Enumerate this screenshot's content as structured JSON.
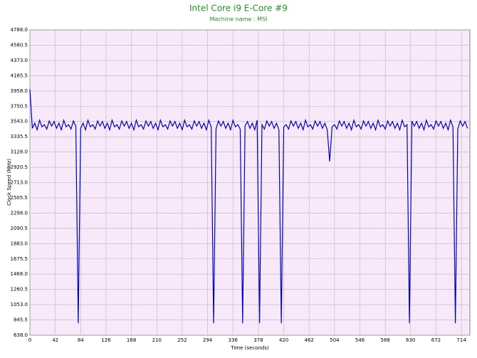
{
  "chart_data": {
    "type": "line",
    "title": "Intel Core i9 E-Core #9",
    "subtitle": "Machine name : MSI",
    "x_label": "Time (seconds)",
    "y_label": "Clock Speed (MHz)",
    "grid": true,
    "xlim": [
      0,
      728
    ],
    "xticks": [
      0,
      42,
      84,
      126,
      168,
      210,
      252,
      294,
      336,
      378,
      420,
      462,
      504,
      546,
      588,
      630,
      672,
      714
    ],
    "ylim": [
      638,
      4788
    ],
    "yticks": [
      {
        "value": 638,
        "label": "638.0"
      },
      {
        "value": 845.5,
        "label": "845.5"
      },
      {
        "value": 1053,
        "label": "1053.0"
      },
      {
        "value": 1260.5,
        "label": "1260.5"
      },
      {
        "value": 1468,
        "label": "1468.0"
      },
      {
        "value": 1675.5,
        "label": "1675.5"
      },
      {
        "value": 1883,
        "label": "1883.0"
      },
      {
        "value": 2090.5,
        "label": "2090.5"
      },
      {
        "value": 2298,
        "label": "2298.0"
      },
      {
        "value": 2505.5,
        "label": "2505.5"
      },
      {
        "value": 2713,
        "label": "2713.0"
      },
      {
        "value": 2920.5,
        "label": "2920.5"
      },
      {
        "value": 3128,
        "label": "3128.0"
      },
      {
        "value": 3335.5,
        "label": "3335.5"
      },
      {
        "value": 3543,
        "label": "3543.0"
      },
      {
        "value": 3750.5,
        "label": "3750.5"
      },
      {
        "value": 3958,
        "label": "3958.0"
      },
      {
        "value": 4165.5,
        "label": "4165.5"
      },
      {
        "value": 4373,
        "label": "4373.0"
      },
      {
        "value": 4580.5,
        "label": "4580.5"
      },
      {
        "value": 4788,
        "label": "4788.0"
      }
    ],
    "x": [
      0,
      4,
      8,
      12,
      16,
      20,
      24,
      28,
      32,
      36,
      40,
      44,
      48,
      52,
      56,
      60,
      64,
      68,
      72,
      76,
      80,
      84,
      88,
      92,
      96,
      100,
      104,
      108,
      112,
      116,
      120,
      124,
      128,
      132,
      136,
      140,
      144,
      148,
      152,
      156,
      160,
      164,
      168,
      172,
      176,
      180,
      184,
      188,
      192,
      196,
      200,
      204,
      208,
      212,
      216,
      220,
      224,
      228,
      232,
      236,
      240,
      244,
      248,
      252,
      256,
      260,
      264,
      268,
      272,
      276,
      280,
      284,
      288,
      292,
      296,
      300,
      304,
      308,
      312,
      316,
      320,
      324,
      328,
      332,
      336,
      340,
      344,
      348,
      352,
      356,
      360,
      364,
      368,
      372,
      376,
      380,
      384,
      388,
      392,
      396,
      400,
      404,
      408,
      412,
      416,
      420,
      424,
      428,
      432,
      436,
      440,
      444,
      448,
      452,
      456,
      460,
      464,
      468,
      472,
      476,
      480,
      484,
      488,
      492,
      496,
      500,
      504,
      508,
      512,
      516,
      520,
      524,
      528,
      532,
      536,
      540,
      544,
      548,
      552,
      556,
      560,
      564,
      568,
      572,
      576,
      580,
      584,
      588,
      592,
      596,
      600,
      604,
      608,
      612,
      616,
      620,
      624,
      628,
      632,
      636,
      640,
      644,
      648,
      652,
      656,
      660,
      664,
      668,
      672,
      676,
      680,
      684,
      688,
      692,
      696,
      700,
      704,
      708,
      712,
      716,
      720,
      724
    ],
    "series": [
      {
        "name": "Clock Speed",
        "color": "#0000c0",
        "values": [
          3980,
          3450,
          3520,
          3430,
          3560,
          3470,
          3500,
          3440,
          3550,
          3480,
          3543,
          3450,
          3520,
          3430,
          3560,
          3470,
          3500,
          3440,
          3550,
          3480,
          800,
          3450,
          3520,
          3430,
          3560,
          3470,
          3500,
          3440,
          3550,
          3480,
          3543,
          3450,
          3520,
          3430,
          3560,
          3470,
          3500,
          3440,
          3550,
          3480,
          3543,
          3450,
          3520,
          3430,
          3560,
          3470,
          3500,
          3440,
          3550,
          3480,
          3543,
          3450,
          3520,
          3430,
          3560,
          3470,
          3500,
          3440,
          3550,
          3480,
          3543,
          3450,
          3520,
          3430,
          3560,
          3470,
          3500,
          3440,
          3550,
          3480,
          3543,
          3450,
          3520,
          3430,
          3560,
          3470,
          800,
          3440,
          3550,
          3480,
          3543,
          3450,
          3520,
          3430,
          3560,
          3470,
          3500,
          3440,
          800,
          3480,
          3543,
          3450,
          3520,
          3430,
          3560,
          800,
          3500,
          3440,
          3550,
          3480,
          3543,
          3450,
          3520,
          3430,
          800,
          3470,
          3500,
          3440,
          3550,
          3480,
          3543,
          3450,
          3520,
          3430,
          3560,
          3470,
          3500,
          3440,
          3550,
          3480,
          3543,
          3450,
          3520,
          3430,
          3000,
          3470,
          3500,
          3440,
          3550,
          3480,
          3543,
          3450,
          3520,
          3430,
          3560,
          3470,
          3500,
          3440,
          3550,
          3480,
          3543,
          3450,
          3520,
          3430,
          3560,
          3470,
          3500,
          3440,
          3550,
          3480,
          3543,
          3450,
          3520,
          3430,
          3560,
          3470,
          3500,
          800,
          3550,
          3480,
          3543,
          3450,
          3520,
          3430,
          3560,
          3470,
          3500,
          3440,
          3550,
          3480,
          3543,
          3450,
          3520,
          3430,
          3560,
          3470,
          800,
          3440,
          3550,
          3480,
          3543,
          3450
        ]
      }
    ]
  }
}
